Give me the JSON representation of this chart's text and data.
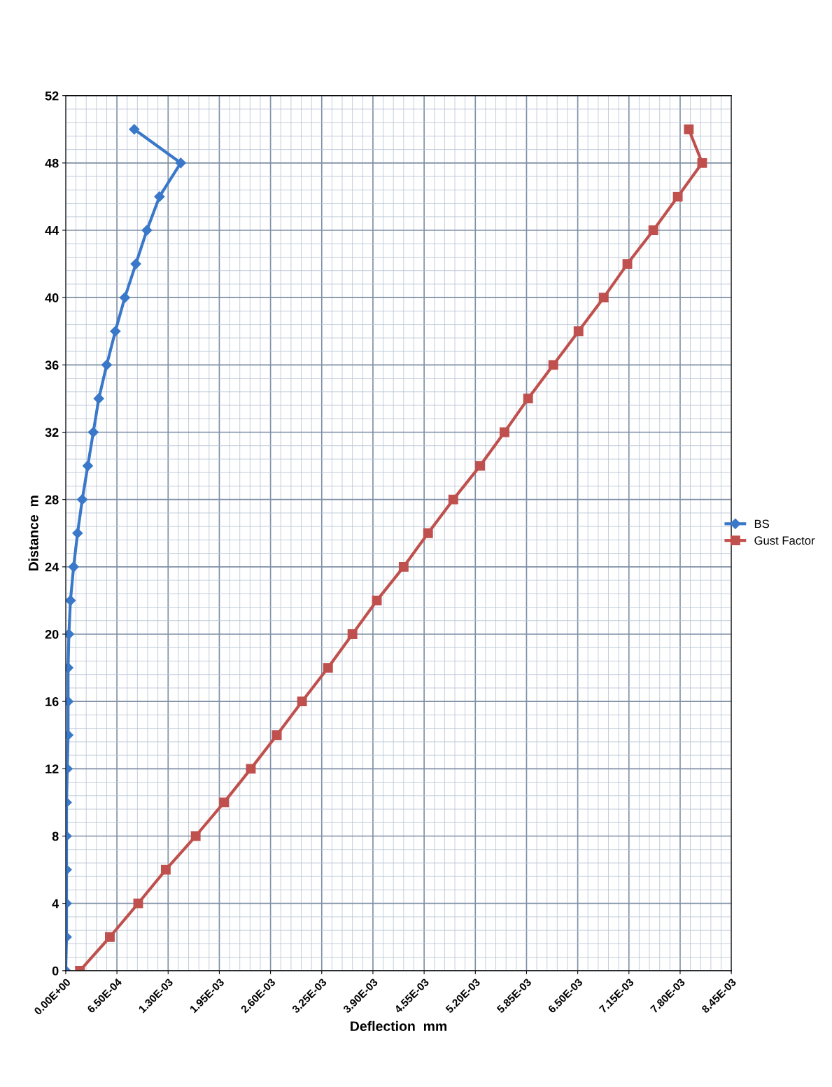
{
  "chart_data": {
    "type": "line",
    "xlabel": "Deflection  mm",
    "ylabel": "Distance  m",
    "legend": "right",
    "grid": true,
    "series": [
      {
        "name": "BS",
        "color": "#3a78c9",
        "marker": "diamond",
        "x": [
          0,
          1e-05,
          1e-05,
          1e-05,
          1e-05,
          1e-05,
          2e-05,
          3e-05,
          3e-05,
          3e-05,
          4e-05,
          6e-05,
          0.0001,
          0.00015,
          0.00021,
          0.00028,
          0.00035,
          0.00042,
          0.00052,
          0.00063,
          0.00075,
          0.00089,
          0.00103,
          0.00119,
          0.00146,
          0.00087
        ],
        "values": [
          0,
          2,
          4,
          6,
          8,
          10,
          12,
          14,
          16,
          18,
          20,
          22,
          24,
          26,
          28,
          30,
          32,
          34,
          36,
          38,
          40,
          42,
          44,
          46,
          48,
          50
        ]
      },
      {
        "name": "Gust Factor",
        "color": "#c0504d",
        "marker": "square",
        "x": [
          0.00018,
          0.00056,
          0.00092,
          0.00127,
          0.00165,
          0.00201,
          0.00235,
          0.00268,
          0.003,
          0.00333,
          0.00364,
          0.00395,
          0.00429,
          0.0046,
          0.00492,
          0.00526,
          0.00557,
          0.00587,
          0.00619,
          0.00651,
          0.00683,
          0.00713,
          0.00746,
          0.00777,
          0.00808,
          0.00791
        ],
        "values": [
          0,
          2,
          4,
          6,
          8,
          10,
          12,
          14,
          16,
          18,
          20,
          22,
          24,
          26,
          28,
          30,
          32,
          34,
          36,
          38,
          40,
          42,
          44,
          46,
          48,
          50
        ]
      }
    ],
    "xlim": [
      0,
      0.00845
    ],
    "xticks": [
      {
        "value": 0,
        "label": "0.00E+00"
      },
      {
        "value": 0.00065,
        "label": "6.50E-04"
      },
      {
        "value": 0.0013,
        "label": "1.30E-03"
      },
      {
        "value": 0.00195,
        "label": "1.95E-03"
      },
      {
        "value": 0.0026,
        "label": "2.60E-03"
      },
      {
        "value": 0.00325,
        "label": "3.25E-03"
      },
      {
        "value": 0.0039,
        "label": "3.90E-03"
      },
      {
        "value": 0.00455,
        "label": "4.55E-03"
      },
      {
        "value": 0.0052,
        "label": "5.20E-03"
      },
      {
        "value": 0.00585,
        "label": "5.85E-03"
      },
      {
        "value": 0.0065,
        "label": "6.50E-03"
      },
      {
        "value": 0.00715,
        "label": "7.15E-03"
      },
      {
        "value": 0.0078,
        "label": "7.80E-03"
      },
      {
        "value": 0.00845,
        "label": "8.45E-03"
      }
    ],
    "ylim": [
      0,
      52
    ],
    "yticks": [
      0,
      4,
      8,
      12,
      16,
      20,
      24,
      28,
      32,
      36,
      40,
      44,
      48,
      52
    ]
  }
}
